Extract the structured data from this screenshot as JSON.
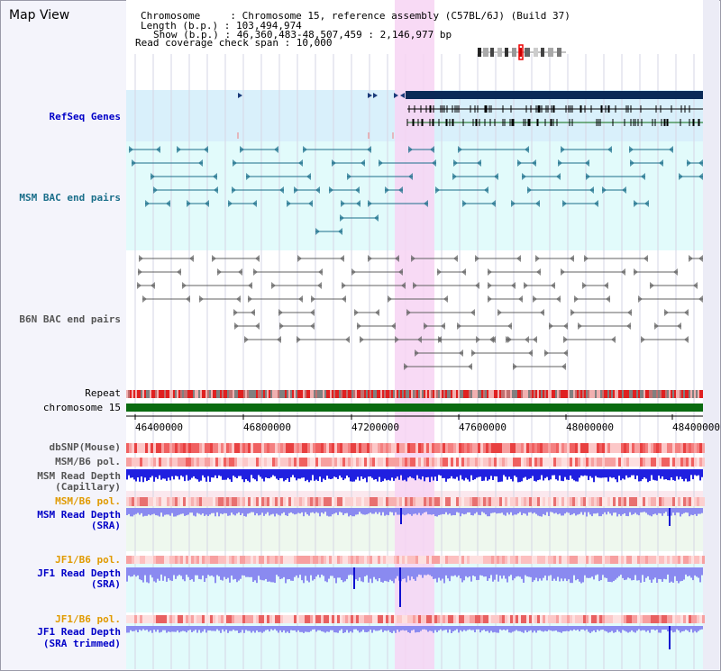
{
  "header": {
    "title": "Map View",
    "chromosome_line": "Chromosome     : Chromosome 15, reference assembly (C57BL/6J) (Build 37)",
    "length_line": "Length (b.p.) : 103,494,974",
    "show_line": "Show (b.p.) : 46,360,483-48,507,459 : 2,146,977 bp",
    "coverage_line": "Read coverage check span : 10,000"
  },
  "tracks": {
    "refseq": "RefSeq Genes",
    "msm_bac": "MSM BAC end pairs",
    "b6n_bac": "B6N BAC end pairs",
    "repeat": "Repeat",
    "chromosome": "chromosome 15",
    "dbsnp": "dbSNP(Mouse)",
    "msm_pol_1": "MSM/B6 pol.",
    "msm_depth_cap_1": "MSM Read Depth",
    "msm_depth_cap_2": "(Capillary)",
    "msm_pol_2": "MSM/B6 pol.",
    "msm_depth_sra_1": "MSM Read Depth",
    "msm_depth_sra_2": "(SRA)",
    "jf1_pol_1": "JF1/B6 pol.",
    "jf1_depth_1": "JF1 Read Depth",
    "jf1_depth_2": "(SRA)",
    "jf1_pol_2": "JF1/B6 pol.",
    "jf1_trim_1": "JF1 Read Depth",
    "jf1_trim_2": "(SRA trimmed)"
  },
  "axis": {
    "ticks": [
      "46400000",
      "46800000",
      "47200000",
      "47600000",
      "48000000",
      "48400000"
    ]
  },
  "colors": {
    "highlight": "#f7d3f3",
    "refseq_bg": "#d9f0fb",
    "msm_bg": "#e2fbfb",
    "gene_block": "#0b2a57",
    "chromosome_bar": "#0a6b10",
    "label_blue": "#0000c8",
    "label_teal": "#1a6e8a",
    "label_gray": "#555555",
    "label_orange": "#e09a00",
    "depth_blue": "#2020e0",
    "depth_light": "#8a8af0"
  }
}
